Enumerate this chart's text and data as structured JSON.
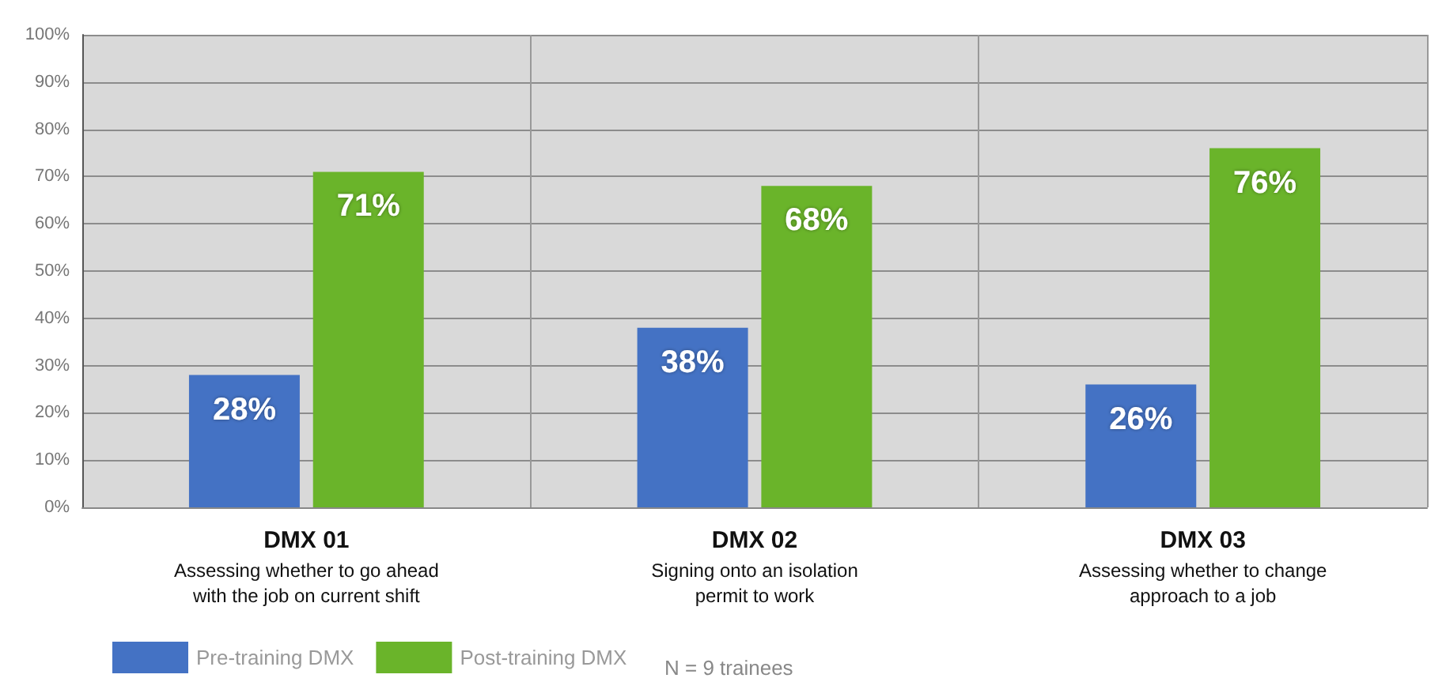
{
  "chart_data": {
    "type": "bar",
    "categories": [
      "DMX 01\nAssessing whether to go ahead\nwith the job on current shift",
      "DMX 02\nSigning onto an isolation\npermit to work",
      "DMX 03\nAssessing whether to change\napproach to a job"
    ],
    "series": [
      {
        "name": "Pre-training DMX",
        "color": "#4472c4",
        "values": [
          28,
          38,
          26
        ],
        "value_labels": [
          "28%",
          "38%",
          "26%"
        ]
      },
      {
        "name": "Post-training DMX",
        "color": "#6ab42a",
        "values": [
          71,
          68,
          76
        ],
        "value_labels": [
          "71%",
          "68%",
          "76%"
        ]
      }
    ],
    "ylim": [
      0,
      100
    ],
    "yticks": [
      {
        "value": 0,
        "label": "0%"
      },
      {
        "value": 10,
        "label": "10%"
      },
      {
        "value": 20,
        "label": "20%"
      },
      {
        "value": 30,
        "label": "30%"
      },
      {
        "value": 40,
        "label": "40%"
      },
      {
        "value": 50,
        "label": "50%"
      },
      {
        "value": 60,
        "label": "60%"
      },
      {
        "value": 70,
        "label": "70%"
      },
      {
        "value": 80,
        "label": "80%"
      },
      {
        "value": 90,
        "label": "90%"
      },
      {
        "value": 100,
        "label": "100%"
      }
    ],
    "grid": true,
    "legend": "bottom left",
    "annotations": [
      "N = 9 trainees"
    ]
  }
}
